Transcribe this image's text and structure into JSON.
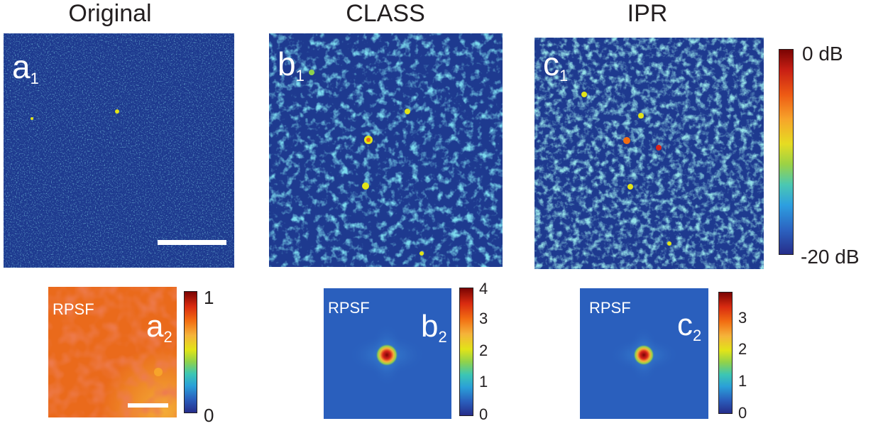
{
  "columns": [
    {
      "title": "Original"
    },
    {
      "title": "CLASS"
    },
    {
      "title": "IPR"
    }
  ],
  "top_panels": [
    {
      "label": "a",
      "sub": "1"
    },
    {
      "label": "b",
      "sub": "1"
    },
    {
      "label": "c",
      "sub": "1"
    }
  ],
  "bottom_panels": [
    {
      "label": "a",
      "sub": "2",
      "rpsf": "RPSF",
      "colorbar_ticks": [
        "1",
        "0"
      ]
    },
    {
      "label": "b",
      "sub": "2",
      "rpsf": "RPSF",
      "colorbar_ticks": [
        "4",
        "3",
        "2",
        "1",
        "0"
      ]
    },
    {
      "label": "c",
      "sub": "2",
      "rpsf": "RPSF",
      "colorbar_ticks": [
        "3",
        "2",
        "1",
        "0"
      ]
    }
  ],
  "main_colorbar": {
    "top": "0 dB",
    "bottom": "-20 dB"
  },
  "colors": {
    "background_blue": "#1e3a8f",
    "rpsf_blue": "#2a5fbd",
    "hot_red": "#d8241c"
  }
}
